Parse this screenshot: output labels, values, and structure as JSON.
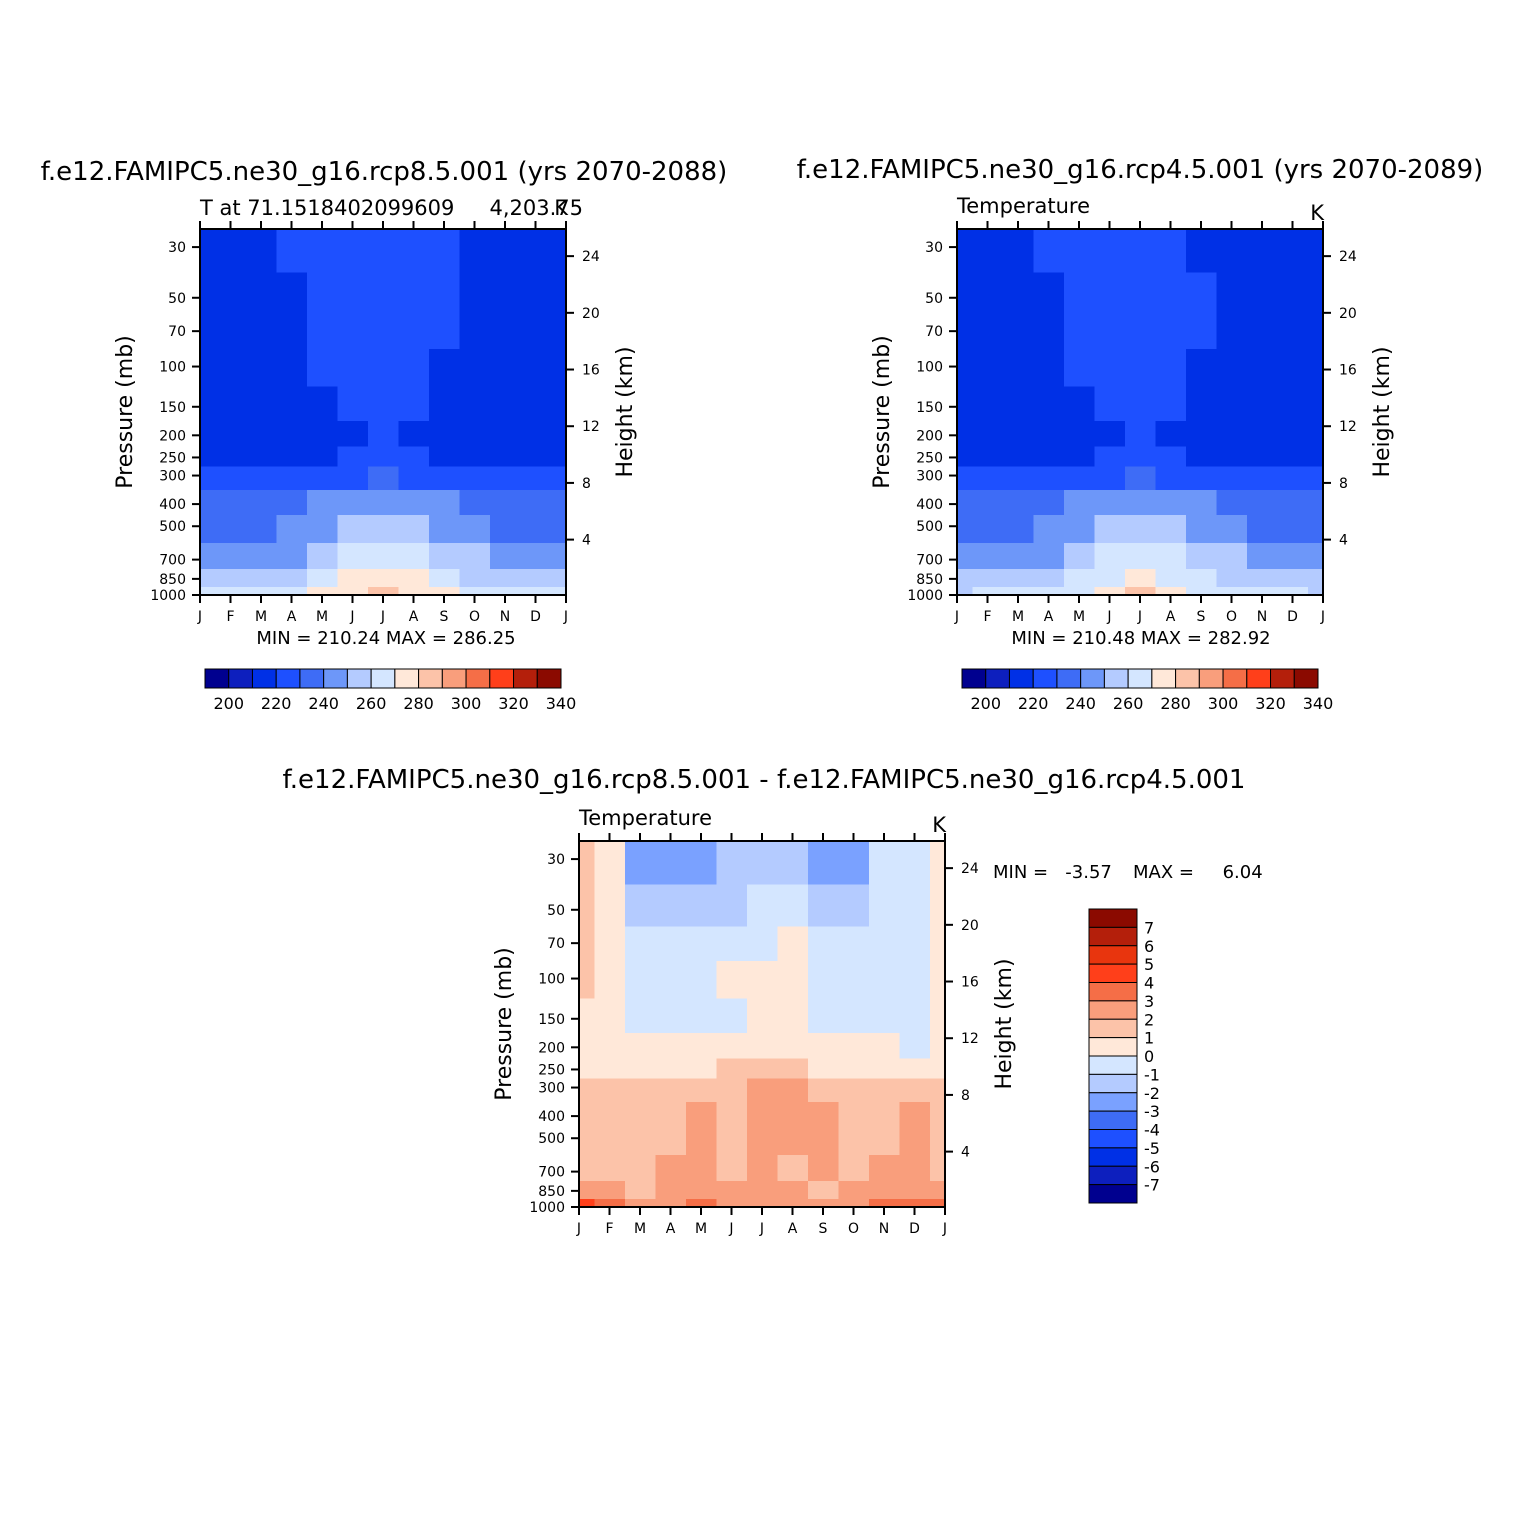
{
  "colors": {
    "abs_scale": [
      "#00008f",
      "#0d1fbe",
      "#0030e6",
      "#1e50ff",
      "#3e6cf6",
      "#6d97f9",
      "#b4cbff",
      "#d4e6ff",
      "#ffe8d9",
      "#fcc3a9",
      "#f99e7c",
      "#f56e47",
      "#ff3f1a",
      "#b41f0b",
      "#8b0a00"
    ],
    "diff_scale": [
      "#00008f",
      "#0d1fbe",
      "#0030e6",
      "#1e50ff",
      "#3e6cf6",
      "#7aa1ff",
      "#b4cbff",
      "#d4e6ff",
      "#ffe8d9",
      "#fcc3a9",
      "#f99e7c",
      "#f56e47",
      "#ff3f1a",
      "#e8350e",
      "#b41f0b",
      "#8b0a00"
    ]
  },
  "chart_data": [
    {
      "id": "panel-rcp85",
      "type": "heatmap",
      "title": "f.e12.FAMIPC5.ne30_g16.rcp8.5.001 (yrs 2070-2088)",
      "left_label": "T at 71.1518402099609",
      "right_label": "4,203.75",
      "units": "K",
      "xlabel": "",
      "ylabel": "Pressure (mb)",
      "y2label": "Height (km)",
      "x_ticks": [
        "J",
        "F",
        "M",
        "A",
        "M",
        "J",
        "J",
        "A",
        "S",
        "O",
        "N",
        "D",
        "J"
      ],
      "p_ticks": [
        30,
        50,
        70,
        100,
        150,
        200,
        250,
        300,
        400,
        500,
        700,
        850,
        1000
      ],
      "h_ticks": [
        4,
        8,
        12,
        16,
        20,
        24
      ],
      "ylim": [
        1000,
        25
      ],
      "stats": "MIN = 210.24  MAX = 286.25",
      "colorbar_labels": [
        "200",
        "220",
        "240",
        "260",
        "280",
        "300",
        "320",
        "340"
      ],
      "z": [
        [
          2,
          2,
          2,
          3,
          3,
          3,
          3,
          3,
          3,
          2,
          2,
          2,
          2
        ],
        [
          2,
          2,
          2,
          2,
          3,
          3,
          3,
          3,
          3,
          2,
          2,
          2,
          2
        ],
        [
          2,
          2,
          2,
          2,
          3,
          3,
          3,
          3,
          3,
          2,
          2,
          2,
          2
        ],
        [
          2,
          2,
          2,
          2,
          3,
          3,
          3,
          3,
          2,
          2,
          2,
          2,
          2
        ],
        [
          2,
          2,
          2,
          2,
          2,
          3,
          3,
          3,
          2,
          2,
          2,
          2,
          2
        ],
        [
          2,
          2,
          2,
          2,
          2,
          2,
          3,
          2,
          2,
          2,
          2,
          2,
          2
        ],
        [
          2,
          2,
          2,
          2,
          2,
          3,
          3,
          3,
          2,
          2,
          2,
          2,
          2
        ],
        [
          3,
          3,
          3,
          3,
          3,
          3,
          4,
          3,
          3,
          3,
          3,
          3,
          3
        ],
        [
          4,
          4,
          4,
          4,
          5,
          5,
          5,
          5,
          5,
          4,
          4,
          4,
          4
        ],
        [
          4,
          4,
          4,
          5,
          5,
          6,
          6,
          6,
          5,
          5,
          4,
          4,
          4
        ],
        [
          5,
          5,
          5,
          5,
          6,
          7,
          7,
          7,
          6,
          6,
          5,
          5,
          5
        ],
        [
          6,
          6,
          6,
          6,
          7,
          8,
          8,
          8,
          7,
          6,
          6,
          6,
          6
        ],
        [
          7,
          7,
          7,
          7,
          8,
          8,
          9,
          8,
          8,
          7,
          7,
          7,
          7
        ]
      ]
    },
    {
      "id": "panel-rcp45",
      "type": "heatmap",
      "title": "f.e12.FAMIPC5.ne30_g16.rcp4.5.001 (yrs 2070-2089)",
      "left_label": "Temperature",
      "units": "K",
      "xlabel": "",
      "ylabel": "Pressure (mb)",
      "y2label": "Height (km)",
      "x_ticks": [
        "J",
        "F",
        "M",
        "A",
        "M",
        "J",
        "J",
        "A",
        "S",
        "O",
        "N",
        "D",
        "J"
      ],
      "p_ticks": [
        30,
        50,
        70,
        100,
        150,
        200,
        250,
        300,
        400,
        500,
        700,
        850,
        1000
      ],
      "h_ticks": [
        4,
        8,
        12,
        16,
        20,
        24
      ],
      "ylim": [
        1000,
        25
      ],
      "stats": "MIN = 210.48  MAX = 282.92",
      "colorbar_labels": [
        "200",
        "220",
        "240",
        "260",
        "280",
        "300",
        "320",
        "340"
      ],
      "z": [
        [
          2,
          2,
          2,
          3,
          3,
          3,
          3,
          3,
          2,
          2,
          2,
          2,
          2
        ],
        [
          2,
          2,
          2,
          2,
          3,
          3,
          3,
          3,
          3,
          2,
          2,
          2,
          2
        ],
        [
          2,
          2,
          2,
          2,
          3,
          3,
          3,
          3,
          3,
          2,
          2,
          2,
          2
        ],
        [
          2,
          2,
          2,
          2,
          3,
          3,
          3,
          3,
          2,
          2,
          2,
          2,
          2
        ],
        [
          2,
          2,
          2,
          2,
          2,
          3,
          3,
          3,
          2,
          2,
          2,
          2,
          2
        ],
        [
          2,
          2,
          2,
          2,
          2,
          2,
          3,
          2,
          2,
          2,
          2,
          2,
          2
        ],
        [
          2,
          2,
          2,
          2,
          2,
          3,
          3,
          3,
          2,
          2,
          2,
          2,
          2
        ],
        [
          3,
          3,
          3,
          3,
          3,
          3,
          4,
          3,
          3,
          3,
          3,
          3,
          3
        ],
        [
          4,
          4,
          4,
          4,
          5,
          5,
          5,
          5,
          5,
          4,
          4,
          4,
          4
        ],
        [
          4,
          4,
          4,
          5,
          5,
          6,
          6,
          6,
          5,
          5,
          4,
          4,
          4
        ],
        [
          5,
          5,
          5,
          5,
          6,
          7,
          7,
          7,
          6,
          6,
          5,
          5,
          5
        ],
        [
          6,
          6,
          6,
          6,
          7,
          7,
          8,
          7,
          7,
          6,
          6,
          6,
          6
        ],
        [
          6,
          7,
          7,
          7,
          7,
          8,
          9,
          8,
          7,
          7,
          7,
          7,
          6
        ]
      ]
    },
    {
      "id": "panel-diff",
      "type": "heatmap",
      "title": "f.e12.FAMIPC5.ne30_g16.rcp8.5.001 - f.e12.FAMIPC5.ne30_g16.rcp4.5.001",
      "left_label": "Temperature",
      "units": "K",
      "xlabel": "",
      "ylabel": "Pressure (mb)",
      "y2label": "Height (km)",
      "x_ticks": [
        "J",
        "F",
        "M",
        "A",
        "M",
        "J",
        "J",
        "A",
        "S",
        "O",
        "N",
        "D",
        "J"
      ],
      "p_ticks": [
        30,
        50,
        70,
        100,
        150,
        200,
        250,
        300,
        400,
        500,
        700,
        850,
        1000
      ],
      "h_ticks": [
        4,
        8,
        12,
        16,
        20,
        24
      ],
      "ylim": [
        1000,
        25
      ],
      "stats_min": "MIN =   -3.57",
      "stats_max": "MAX =     6.04",
      "colorbar_labels": [
        "7",
        "6",
        "5",
        "4",
        "3",
        "2",
        "1",
        "0",
        "-1",
        "-2",
        "-3",
        "-4",
        "-5",
        "-6",
        "-7"
      ],
      "z": [
        [
          9,
          8,
          5,
          5,
          5,
          6,
          6,
          6,
          5,
          5,
          7,
          7,
          8
        ],
        [
          9,
          8,
          6,
          6,
          6,
          6,
          7,
          7,
          6,
          6,
          7,
          7,
          8
        ],
        [
          9,
          8,
          7,
          7,
          7,
          7,
          7,
          8,
          7,
          7,
          7,
          7,
          8
        ],
        [
          9,
          8,
          7,
          7,
          7,
          8,
          8,
          8,
          7,
          7,
          7,
          7,
          8
        ],
        [
          8,
          8,
          7,
          7,
          7,
          7,
          8,
          8,
          7,
          7,
          7,
          7,
          8
        ],
        [
          8,
          8,
          8,
          8,
          8,
          8,
          8,
          8,
          8,
          8,
          8,
          7,
          8
        ],
        [
          8,
          8,
          8,
          8,
          8,
          9,
          9,
          9,
          8,
          8,
          8,
          8,
          8
        ],
        [
          9,
          9,
          9,
          9,
          9,
          9,
          10,
          10,
          9,
          9,
          9,
          9,
          9
        ],
        [
          9,
          9,
          9,
          9,
          10,
          9,
          10,
          10,
          10,
          9,
          9,
          10,
          9
        ],
        [
          9,
          9,
          9,
          9,
          10,
          9,
          10,
          10,
          10,
          9,
          9,
          10,
          9
        ],
        [
          9,
          9,
          9,
          10,
          10,
          9,
          10,
          9,
          10,
          9,
          10,
          10,
          9
        ],
        [
          10,
          10,
          9,
          10,
          10,
          10,
          10,
          10,
          9,
          10,
          10,
          10,
          10
        ],
        [
          12,
          11,
          10,
          10,
          11,
          10,
          10,
          10,
          10,
          10,
          11,
          11,
          11
        ]
      ]
    }
  ]
}
